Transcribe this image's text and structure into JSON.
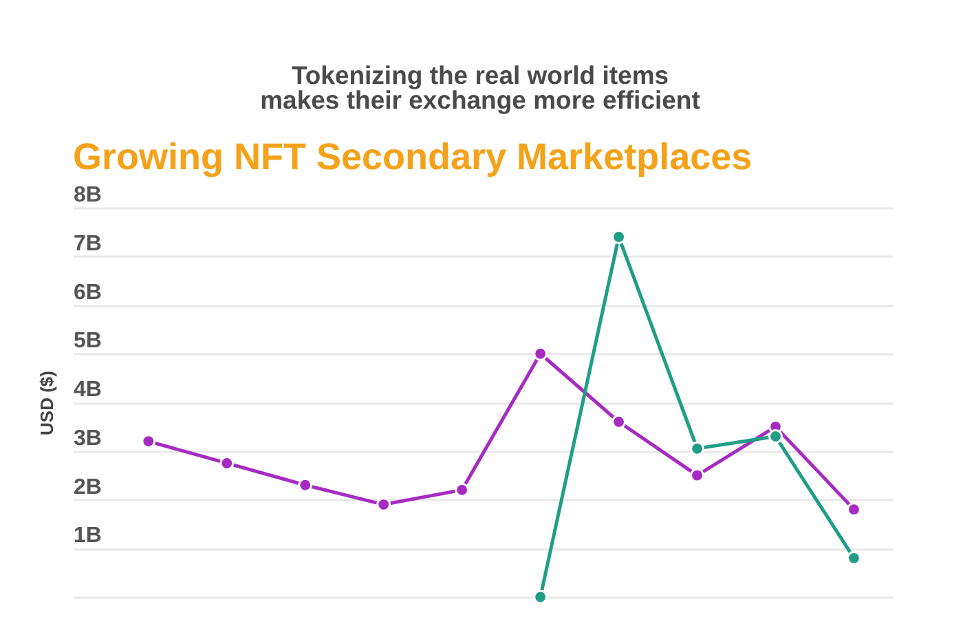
{
  "chart_data": {
    "type": "line",
    "title": "Growing NFT Secondary Marketplaces",
    "ylabel": "USD ($)",
    "annotations": [
      "Tokenizing the real world items\nmakes their exchange more efficient"
    ],
    "categories": [
      null,
      null,
      null,
      null,
      null,
      null,
      null,
      null,
      null,
      null
    ],
    "series": [
      {
        "color": "#a62bc2",
        "values": [
          3.2,
          2.75,
          2.3,
          1.9,
          2.2,
          5.0,
          3.6,
          2.5,
          3.5,
          1.8
        ]
      },
      {
        "color": "#1f9e86",
        "values": [
          null,
          null,
          null,
          null,
          null,
          0,
          7.4,
          3.05,
          3.3,
          0.8
        ]
      }
    ],
    "ylim": [
      0,
      8
    ],
    "yticks": [
      {
        "value": 0,
        "label": null
      },
      {
        "value": 1,
        "label": "1B"
      },
      {
        "value": 2,
        "label": "2B"
      },
      {
        "value": 3,
        "label": "3B"
      },
      {
        "value": 4,
        "label": "4B"
      },
      {
        "value": 5,
        "label": "5B"
      },
      {
        "value": 6,
        "label": "6B"
      },
      {
        "value": 7,
        "label": "7B"
      },
      {
        "value": 8,
        "label": "8B"
      }
    ],
    "grid": "y",
    "marker": "circle",
    "tick_labels": "y"
  }
}
